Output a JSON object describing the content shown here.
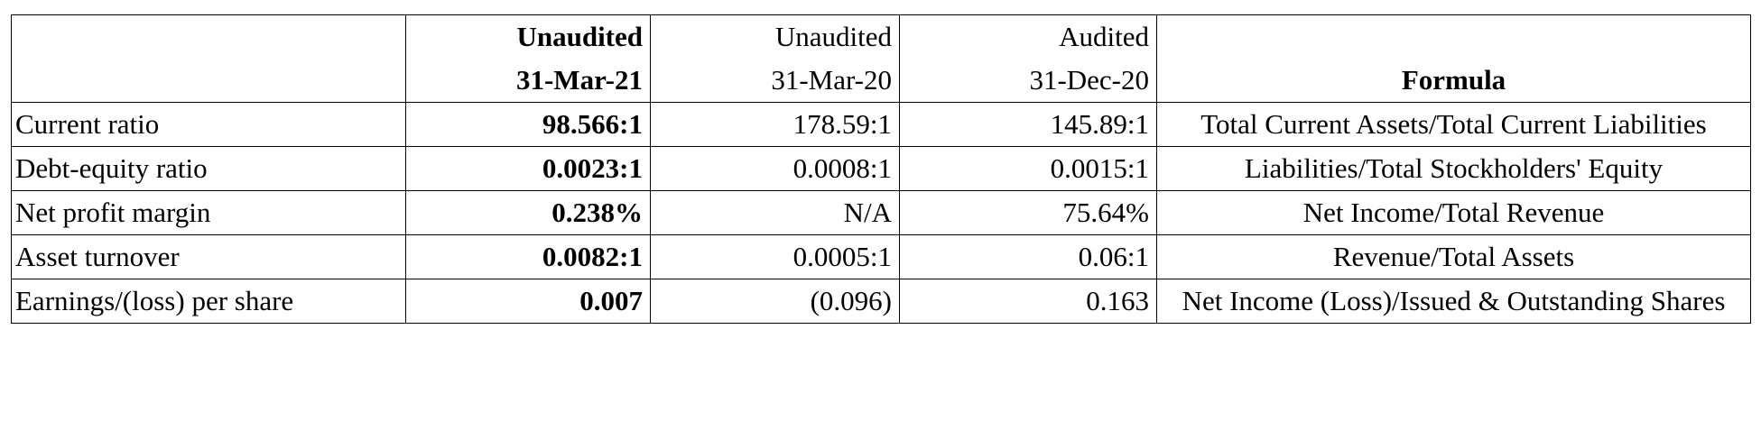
{
  "table": {
    "header": [
      [
        "Unaudited",
        "31-Mar-21"
      ],
      [
        "Unaudited",
        "31-Mar-20"
      ],
      [
        "Audited",
        "31-Dec-20"
      ],
      [
        "Formula"
      ]
    ],
    "rows": [
      [
        "Current ratio",
        "98.566:1",
        "178.59:1",
        "145.89:1",
        "Total Current Assets/Total Current Liabilities"
      ],
      [
        "Debt-equity ratio",
        "0.0023:1",
        "0.0008:1",
        "0.0015:1",
        "Liabilities/Total Stockholders' Equity"
      ],
      [
        "Net profit margin",
        "0.238%",
        "N/A",
        "75.64%",
        "Net Income/Total Revenue"
      ],
      [
        "Asset turnover",
        "0.0082:1",
        "0.0005:1",
        "0.06:1",
        "Revenue/Total Assets"
      ],
      [
        "Earnings/(loss) per share",
        "0.007",
        "(0.096)",
        "0.163",
        "Net Income (Loss)/Issued & Outstanding Shares"
      ]
    ]
  }
}
